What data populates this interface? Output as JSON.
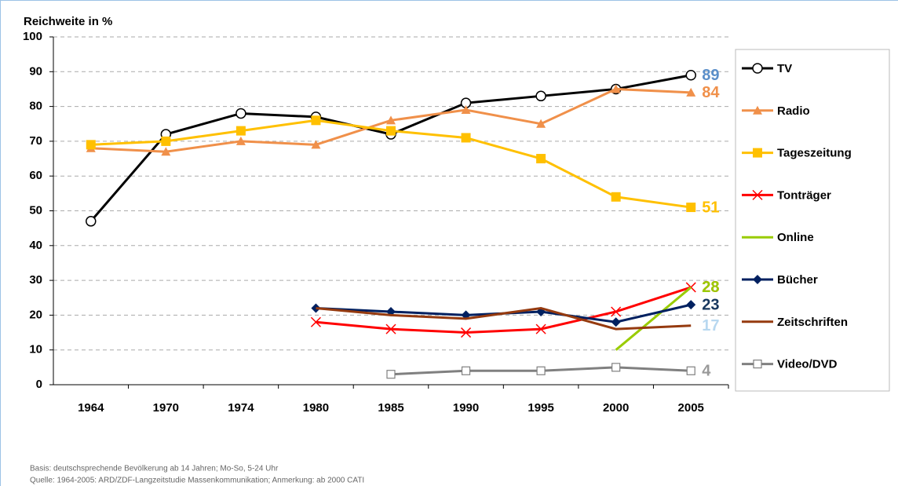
{
  "chart_data": {
    "type": "line",
    "title": "Reichweite in %",
    "categories": [
      "1964",
      "1970",
      "1974",
      "1980",
      "1985",
      "1990",
      "1995",
      "2000",
      "2005"
    ],
    "series": [
      {
        "name": "TV",
        "color": "#000000",
        "marker": "circle",
        "label_color": "#5b8fc9",
        "values": [
          47,
          72,
          78,
          77,
          72,
          81,
          83,
          85,
          89
        ]
      },
      {
        "name": "Radio",
        "color": "#f0904a",
        "marker": "triangle",
        "label_color": "#f0904a",
        "values": [
          68,
          67,
          70,
          69,
          76,
          79,
          75,
          85,
          84
        ]
      },
      {
        "name": "Tageszeitung",
        "color": "#ffc000",
        "marker": "square",
        "label_color": "#ffc000",
        "values": [
          69,
          70,
          73,
          76,
          73,
          71,
          65,
          54,
          51
        ]
      },
      {
        "name": "Tonträger",
        "color": "#ff0000",
        "marker": "x",
        "label_color": "#ff0000",
        "values": [
          null,
          null,
          null,
          18,
          16,
          15,
          16,
          21,
          28
        ]
      },
      {
        "name": "Online",
        "color": "#99cc00",
        "marker": "none",
        "label_color": "#99cc00",
        "values": [
          null,
          null,
          null,
          null,
          null,
          null,
          null,
          10,
          28
        ]
      },
      {
        "name": "Bücher",
        "color": "#002060",
        "marker": "diamond",
        "label_color": "#17375e",
        "values": [
          null,
          null,
          null,
          22,
          21,
          20,
          21,
          18,
          23
        ]
      },
      {
        "name": "Zeitschriften",
        "color": "#953a0f",
        "marker": "none",
        "label_color": "#b8d8f0",
        "values": [
          null,
          null,
          null,
          22,
          20,
          19,
          22,
          16,
          17
        ]
      },
      {
        "name": "Video/DVD",
        "color": "#808080",
        "marker": "opensquare",
        "label_color": "#999999",
        "values": [
          null,
          null,
          null,
          null,
          3,
          4,
          4,
          5,
          4
        ]
      }
    ],
    "ylim": [
      0,
      100
    ],
    "yticks": [
      0,
      10,
      20,
      30,
      40,
      50,
      60,
      70,
      80,
      90,
      100
    ],
    "grid": true,
    "legend": "right",
    "notes": [
      "Basis: deutschsprechende Bevölkerung ab 14 Jahren; Mo-So, 5-24 Uhr",
      "Quelle: 1964-2005: ARD/ZDF-Langzeitstudie Massenkommunikation; Anmerkung: ab 2000 CATI"
    ]
  }
}
